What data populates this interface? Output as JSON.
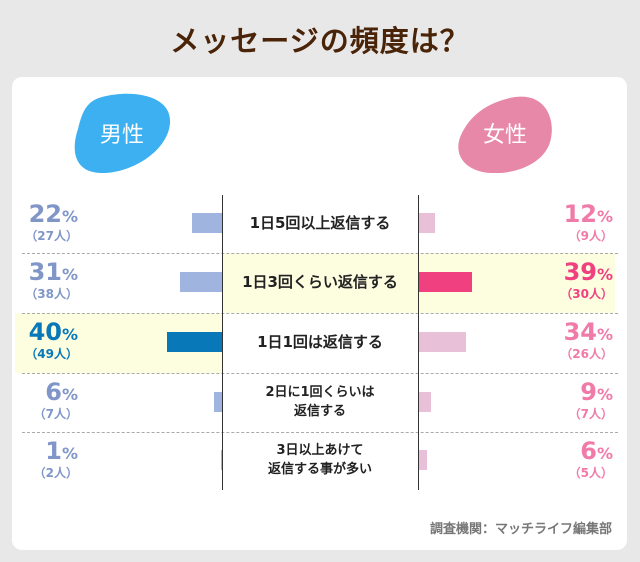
{
  "chart_data": {
    "type": "bar",
    "title": "メッセージの頻度は？",
    "categories": [
      "1日5回以上返信する",
      "1日3回くらい返信する",
      "1日1回は返信する",
      "2日に1回くらいは\n返信する",
      "3日以上あけて\n返信する事が多い"
    ],
    "series": [
      {
        "name": "男性",
        "values": [
          22,
          31,
          40,
          6,
          1
        ],
        "counts": [
          "（27人）",
          "（38人）",
          "（49人）",
          "（7人）",
          "（2人）"
        ],
        "highlight_index": 2
      },
      {
        "name": "女性",
        "values": [
          12,
          39,
          34,
          9,
          6
        ],
        "counts": [
          "（9人）",
          "（30人）",
          "（26人）",
          "（7人）",
          "（5人）"
        ],
        "highlight_index": 1
      }
    ],
    "unit": "%",
    "source": "調査機関：マッチライフ編集部"
  },
  "colors": {
    "title": "#4a2408",
    "male_blob": "#3cb0f0",
    "male_text": "#8096c8",
    "male_bar": "#a0b4e0",
    "male_highlight": "#0878b8",
    "female_blob": "#e888a8",
    "female_text": "#f07aa8",
    "female_bar": "#e8c0d8",
    "female_highlight": "#f04080",
    "row_highlight": "#fdfde0"
  }
}
